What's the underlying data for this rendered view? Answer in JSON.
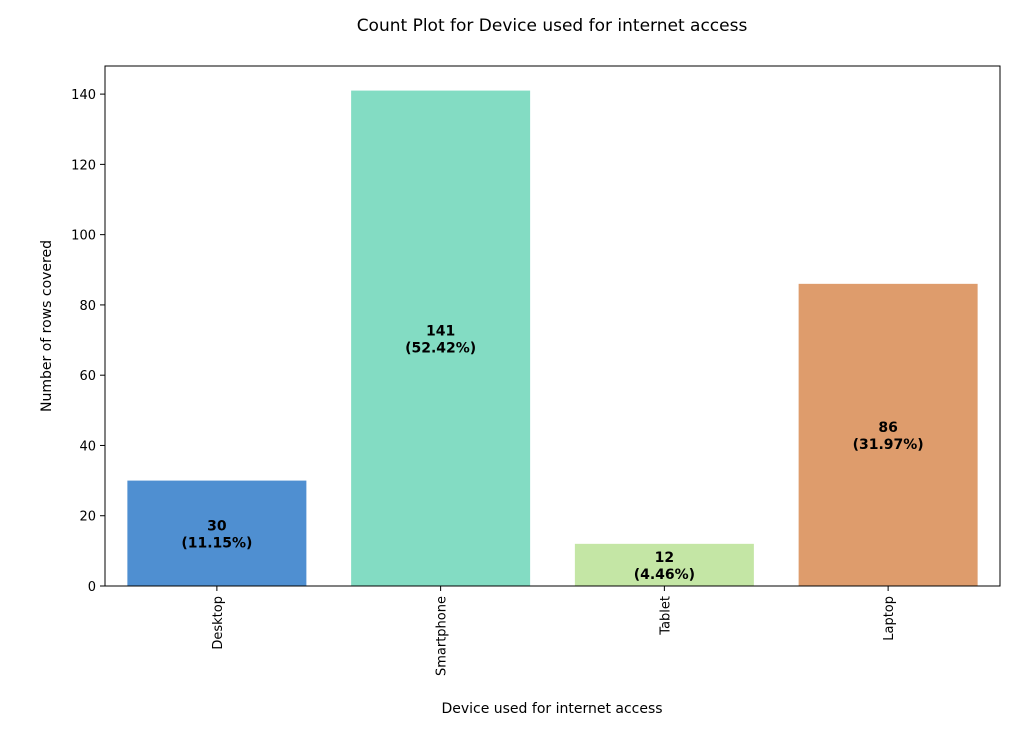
{
  "chart_data": {
    "type": "bar",
    "title": "Count Plot for Device used for internet access",
    "xlabel": "Device used for internet access",
    "ylabel": "Number of rows covered",
    "categories": [
      "Desktop",
      "Smartphone",
      "Tablet",
      "Laptop"
    ],
    "values": [
      30,
      141,
      12,
      86
    ],
    "value_labels": [
      "30",
      "141",
      "12",
      "86"
    ],
    "percent_labels": [
      "(11.15%)",
      "(52.42%)",
      "(4.46%)",
      "(31.97%)"
    ],
    "colors": [
      "#4f8fd1",
      "#83dcc3",
      "#c4e6a5",
      "#de9c6c"
    ],
    "ylim": [
      0,
      148
    ],
    "yticks": [
      0,
      20,
      40,
      60,
      80,
      100,
      120,
      140
    ],
    "grid": false,
    "legend": "none"
  }
}
